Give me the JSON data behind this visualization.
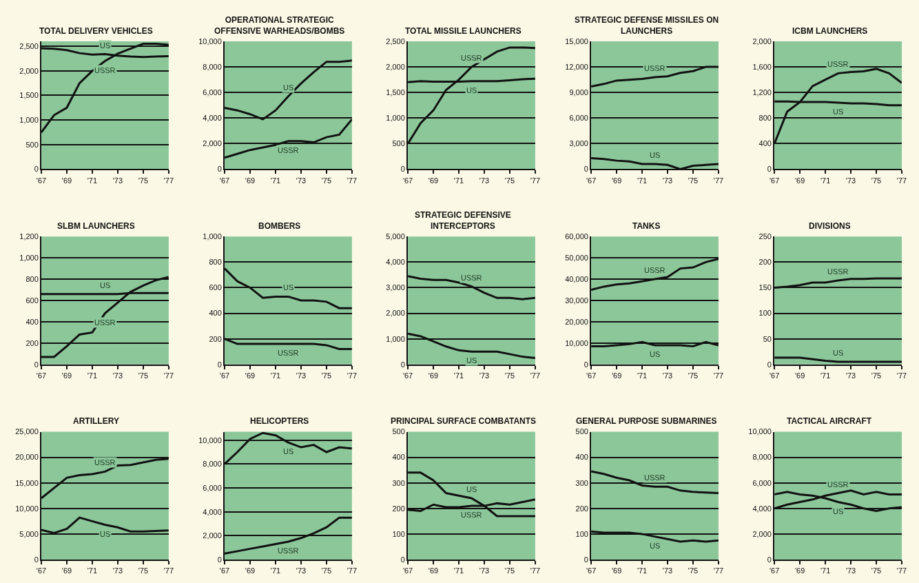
{
  "chart_data": [
    {
      "type": "line",
      "title": "TOTAL DELIVERY VEHICLES",
      "x": [
        1967,
        1968,
        1969,
        1970,
        1971,
        1972,
        1973,
        1974,
        1975,
        1976,
        1977
      ],
      "xlim": [
        1967,
        1977
      ],
      "xticks": [
        {
          "value": 1967,
          "label": "'67"
        },
        {
          "value": 1969,
          "label": "'69"
        },
        {
          "value": 1971,
          "label": "'71"
        },
        {
          "value": 1973,
          "label": "'73"
        },
        {
          "value": 1975,
          "label": "'75"
        },
        {
          "value": 1977,
          "label": "'77"
        }
      ],
      "ylim": [
        0,
        2600
      ],
      "yticks": [
        0,
        500,
        {
          "value": 1000,
          "label": "1,000"
        },
        {
          "value": 1500,
          "label": "1,500"
        },
        {
          "value": 2000,
          "label": "2,000"
        },
        {
          "value": 2500,
          "label": "2,500"
        }
      ],
      "grid": "y",
      "series": [
        {
          "name": "US",
          "color": "#111111",
          "values": [
            2460,
            2450,
            2420,
            2360,
            2330,
            2340,
            2310,
            2290,
            2280,
            2290,
            2300
          ]
        },
        {
          "name": "USSR",
          "color": "#111111",
          "values": [
            750,
            1100,
            1250,
            1750,
            2000,
            2200,
            2350,
            2450,
            2550,
            2550,
            2530
          ]
        }
      ]
    },
    {
      "type": "line",
      "title": "OPERATIONAL STRATEGIC OFFENSIVE WARHEADS/BOMBS",
      "x": [
        1967,
        1968,
        1969,
        1970,
        1971,
        1972,
        1973,
        1974,
        1975,
        1976,
        1977
      ],
      "xlim": [
        1967,
        1977
      ],
      "xticks": [
        {
          "value": 1967,
          "label": "'67"
        },
        {
          "value": 1969,
          "label": "'69"
        },
        {
          "value": 1971,
          "label": "'71"
        },
        {
          "value": 1973,
          "label": "'73"
        },
        {
          "value": 1975,
          "label": "'75"
        },
        {
          "value": 1977,
          "label": "'77"
        }
      ],
      "ylim": [
        0,
        10000
      ],
      "yticks": [
        0,
        {
          "value": 2000,
          "label": "2,000"
        },
        {
          "value": 4000,
          "label": "4,000"
        },
        {
          "value": 6000,
          "label": "6,000"
        },
        {
          "value": 8000,
          "label": "8,000"
        },
        {
          "value": 10000,
          "label": "10,000"
        }
      ],
      "grid": "y",
      "series": [
        {
          "name": "US",
          "color": "#111111",
          "values": [
            4800,
            4600,
            4300,
            3900,
            4600,
            5700,
            6700,
            7600,
            8400,
            8400,
            8500
          ]
        },
        {
          "name": "USSR",
          "color": "#111111",
          "values": [
            900,
            1200,
            1500,
            1700,
            1900,
            2200,
            2200,
            2100,
            2500,
            2700,
            3900
          ]
        }
      ]
    },
    {
      "type": "line",
      "title": "TOTAL MISSILE LAUNCHERS",
      "x": [
        1967,
        1968,
        1969,
        1970,
        1971,
        1972,
        1973,
        1974,
        1975,
        1976,
        1977
      ],
      "xlim": [
        1967,
        1977
      ],
      "xticks": [
        {
          "value": 1967,
          "label": "'67"
        },
        {
          "value": 1969,
          "label": "'69"
        },
        {
          "value": 1971,
          "label": "'71"
        },
        {
          "value": 1973,
          "label": "'73"
        },
        {
          "value": 1975,
          "label": "'75"
        },
        {
          "value": 1977,
          "label": "'77"
        }
      ],
      "ylim": [
        0,
        2500
      ],
      "yticks": [
        0,
        500,
        {
          "value": 1000,
          "label": "1,000"
        },
        {
          "value": 1500,
          "label": "1,500"
        },
        {
          "value": 2000,
          "label": "2,000"
        },
        {
          "value": 2500,
          "label": "2,500"
        }
      ],
      "grid": "y",
      "series": [
        {
          "name": "US",
          "color": "#111111",
          "values": [
            1700,
            1720,
            1710,
            1710,
            1710,
            1720,
            1720,
            1720,
            1740,
            1760,
            1770
          ]
        },
        {
          "name": "USSR",
          "color": "#111111",
          "values": [
            500,
            900,
            1150,
            1550,
            1750,
            2000,
            2150,
            2300,
            2380,
            2380,
            2370
          ]
        }
      ]
    },
    {
      "type": "line",
      "title": "STRATEGIC DEFENSE MISSILES ON LAUNCHERS",
      "x": [
        1967,
        1968,
        1969,
        1970,
        1971,
        1972,
        1973,
        1974,
        1975,
        1976,
        1977
      ],
      "xlim": [
        1967,
        1977
      ],
      "xticks": [
        {
          "value": 1967,
          "label": "'67"
        },
        {
          "value": 1969,
          "label": "'69"
        },
        {
          "value": 1971,
          "label": "'71"
        },
        {
          "value": 1973,
          "label": "'73"
        },
        {
          "value": 1975,
          "label": "'75"
        },
        {
          "value": 1977,
          "label": "'77"
        }
      ],
      "ylim": [
        0,
        15000
      ],
      "yticks": [
        0,
        {
          "value": 3000,
          "label": "3,000"
        },
        {
          "value": 6000,
          "label": "6,000"
        },
        {
          "value": 9000,
          "label": "9,000"
        },
        {
          "value": 12000,
          "label": "12,000"
        },
        {
          "value": 15000,
          "label": "15,000"
        }
      ],
      "grid": "y",
      "series": [
        {
          "name": "USSR",
          "color": "#111111",
          "values": [
            9700,
            10000,
            10400,
            10500,
            10600,
            10800,
            10900,
            11300,
            11500,
            12000,
            12000
          ]
        },
        {
          "name": "US",
          "color": "#111111",
          "values": [
            1300,
            1200,
            1000,
            900,
            600,
            600,
            500,
            0,
            400,
            500,
            600
          ]
        }
      ]
    },
    {
      "type": "line",
      "title": "ICBM LAUNCHERS",
      "x": [
        1967,
        1968,
        1969,
        1970,
        1971,
        1972,
        1973,
        1974,
        1975,
        1976,
        1977
      ],
      "xlim": [
        1967,
        1977
      ],
      "xticks": [
        {
          "value": 1967,
          "label": "'67"
        },
        {
          "value": 1969,
          "label": "'69"
        },
        {
          "value": 1971,
          "label": "'71"
        },
        {
          "value": 1973,
          "label": "'73"
        },
        {
          "value": 1975,
          "label": "'75"
        },
        {
          "value": 1977,
          "label": "'77"
        }
      ],
      "ylim": [
        0,
        2000
      ],
      "yticks": [
        0,
        400,
        800,
        {
          "value": 1200,
          "label": "1,200"
        },
        {
          "value": 1600,
          "label": "1,600"
        },
        {
          "value": 2000,
          "label": "2,000"
        }
      ],
      "grid": "y",
      "series": [
        {
          "name": "USSR",
          "color": "#111111",
          "values": [
            400,
            900,
            1050,
            1300,
            1400,
            1500,
            1520,
            1530,
            1570,
            1500,
            1350
          ]
        },
        {
          "name": "US",
          "color": "#111111",
          "values": [
            1060,
            1060,
            1050,
            1050,
            1050,
            1040,
            1030,
            1030,
            1020,
            1000,
            1000
          ]
        }
      ]
    },
    {
      "type": "line",
      "title": "SLBM LAUNCHERS",
      "x": [
        1967,
        1968,
        1969,
        1970,
        1971,
        1972,
        1973,
        1974,
        1975,
        1976,
        1977
      ],
      "xlim": [
        1967,
        1977
      ],
      "xticks": [
        {
          "value": 1967,
          "label": "'67"
        },
        {
          "value": 1969,
          "label": "'69"
        },
        {
          "value": 1971,
          "label": "'71"
        },
        {
          "value": 1973,
          "label": "'73"
        },
        {
          "value": 1975,
          "label": "'75"
        },
        {
          "value": 1977,
          "label": "'77"
        }
      ],
      "ylim": [
        0,
        1200
      ],
      "yticks": [
        0,
        200,
        400,
        600,
        800,
        {
          "value": 1000,
          "label": "1,000"
        },
        {
          "value": 1200,
          "label": "1,200"
        }
      ],
      "grid": "y",
      "series": [
        {
          "name": "US",
          "color": "#111111",
          "values": [
            660,
            660,
            660,
            660,
            660,
            660,
            660,
            670,
            670,
            670,
            670
          ]
        },
        {
          "name": "USSR",
          "color": "#111111",
          "values": [
            70,
            70,
            170,
            280,
            300,
            480,
            580,
            680,
            740,
            790,
            820
          ]
        }
      ]
    },
    {
      "type": "line",
      "title": "BOMBERS",
      "x": [
        1967,
        1968,
        1969,
        1970,
        1971,
        1972,
        1973,
        1974,
        1975,
        1976,
        1977
      ],
      "xlim": [
        1967,
        1977
      ],
      "xticks": [
        {
          "value": 1967,
          "label": "'67"
        },
        {
          "value": 1969,
          "label": "'69"
        },
        {
          "value": 1971,
          "label": "'71"
        },
        {
          "value": 1973,
          "label": "'73"
        },
        {
          "value": 1975,
          "label": "'75"
        },
        {
          "value": 1977,
          "label": "'77"
        }
      ],
      "ylim": [
        0,
        1000
      ],
      "yticks": [
        0,
        200,
        400,
        600,
        800,
        {
          "value": 1000,
          "label": "1,000"
        }
      ],
      "grid": "y",
      "series": [
        {
          "name": "US",
          "color": "#111111",
          "values": [
            750,
            650,
            600,
            520,
            530,
            530,
            500,
            500,
            490,
            440,
            440
          ]
        },
        {
          "name": "USSR",
          "color": "#111111",
          "values": [
            200,
            160,
            160,
            160,
            160,
            160,
            160,
            160,
            150,
            120,
            120
          ]
        }
      ]
    },
    {
      "type": "line",
      "title": "STRATEGIC DEFENSIVE INTERCEPTORS",
      "x": [
        1967,
        1968,
        1969,
        1970,
        1971,
        1972,
        1973,
        1974,
        1975,
        1976,
        1977
      ],
      "xlim": [
        1967,
        1977
      ],
      "xticks": [
        {
          "value": 1967,
          "label": "'67"
        },
        {
          "value": 1969,
          "label": "'69"
        },
        {
          "value": 1971,
          "label": "'71"
        },
        {
          "value": 1973,
          "label": "'73"
        },
        {
          "value": 1975,
          "label": "'75"
        },
        {
          "value": 1977,
          "label": "'77"
        }
      ],
      "ylim": [
        0,
        5000
      ],
      "yticks": [
        0,
        {
          "value": 1000,
          "label": "1,000"
        },
        {
          "value": 2000,
          "label": "2,000"
        },
        {
          "value": 3000,
          "label": "3,000"
        },
        {
          "value": 4000,
          "label": "4,000"
        },
        {
          "value": 5000,
          "label": "5,000"
        }
      ],
      "grid": "y",
      "series": [
        {
          "name": "USSR",
          "color": "#111111",
          "values": [
            3450,
            3350,
            3300,
            3300,
            3200,
            3050,
            2800,
            2600,
            2600,
            2550,
            2600
          ]
        },
        {
          "name": "US",
          "color": "#111111",
          "values": [
            1200,
            1100,
            900,
            700,
            550,
            500,
            500,
            500,
            400,
            300,
            250
          ]
        }
      ]
    },
    {
      "type": "line",
      "title": "TANKS",
      "x": [
        1967,
        1968,
        1969,
        1970,
        1971,
        1972,
        1973,
        1974,
        1975,
        1976,
        1977
      ],
      "xlim": [
        1967,
        1977
      ],
      "xticks": [
        {
          "value": 1967,
          "label": "'67"
        },
        {
          "value": 1969,
          "label": "'69"
        },
        {
          "value": 1971,
          "label": "'71"
        },
        {
          "value": 1973,
          "label": "'73"
        },
        {
          "value": 1975,
          "label": "'75"
        },
        {
          "value": 1977,
          "label": "'77"
        }
      ],
      "ylim": [
        0,
        60000
      ],
      "yticks": [
        0,
        {
          "value": 10000,
          "label": "10,000"
        },
        {
          "value": 20000,
          "label": "20,000"
        },
        {
          "value": 30000,
          "label": "30,000"
        },
        {
          "value": 40000,
          "label": "40,000"
        },
        {
          "value": 50000,
          "label": "50,000"
        },
        {
          "value": 60000,
          "label": "60,000"
        }
      ],
      "grid": "y",
      "series": [
        {
          "name": "USSR",
          "color": "#111111",
          "values": [
            35000,
            36500,
            37500,
            38000,
            39000,
            40000,
            41000,
            45000,
            45500,
            48000,
            49500
          ]
        },
        {
          "name": "US",
          "color": "#111111",
          "values": [
            8500,
            8500,
            9000,
            9500,
            10500,
            9000,
            9000,
            9000,
            8500,
            10500,
            9000
          ]
        }
      ]
    },
    {
      "type": "line",
      "title": "DIVISIONS",
      "x": [
        1967,
        1968,
        1969,
        1970,
        1971,
        1972,
        1973,
        1974,
        1975,
        1976,
        1977
      ],
      "xlim": [
        1967,
        1977
      ],
      "xticks": [
        {
          "value": 1967,
          "label": "'67"
        },
        {
          "value": 1969,
          "label": "'69"
        },
        {
          "value": 1971,
          "label": "'71"
        },
        {
          "value": 1973,
          "label": "'73"
        },
        {
          "value": 1975,
          "label": "'75"
        },
        {
          "value": 1977,
          "label": "'77"
        }
      ],
      "ylim": [
        0,
        250
      ],
      "yticks": [
        0,
        50,
        100,
        150,
        200,
        250
      ],
      "grid": "y",
      "series": [
        {
          "name": "USSR",
          "color": "#111111",
          "values": [
            150,
            152,
            155,
            160,
            160,
            164,
            167,
            167,
            168,
            168,
            168
          ]
        },
        {
          "name": "US",
          "color": "#111111",
          "values": [
            13,
            13,
            13,
            10,
            7,
            5,
            5,
            5,
            5,
            5,
            5
          ]
        }
      ]
    },
    {
      "type": "line",
      "title": "ARTILLERY",
      "x": [
        1967,
        1968,
        1969,
        1970,
        1971,
        1972,
        1973,
        1974,
        1975,
        1976,
        1977
      ],
      "xlim": [
        1967,
        1977
      ],
      "xticks": [
        {
          "value": 1967,
          "label": "'67"
        },
        {
          "value": 1969,
          "label": "'69"
        },
        {
          "value": 1971,
          "label": "'71"
        },
        {
          "value": 1973,
          "label": "'73"
        },
        {
          "value": 1975,
          "label": "'75"
        },
        {
          "value": 1977,
          "label": "'77"
        }
      ],
      "ylim": [
        0,
        25000
      ],
      "yticks": [
        0,
        {
          "value": 5000,
          "label": "5,000"
        },
        {
          "value": 10000,
          "label": "10,000"
        },
        {
          "value": 15000,
          "label": "15,000"
        },
        {
          "value": 20000,
          "label": "20,000"
        },
        {
          "value": 25000,
          "label": "25,000"
        }
      ],
      "grid": "y",
      "series": [
        {
          "name": "USSR",
          "color": "#111111",
          "values": [
            12000,
            14000,
            16000,
            16500,
            16700,
            17200,
            18400,
            18500,
            19000,
            19500,
            19700
          ]
        },
        {
          "name": "US",
          "color": "#111111",
          "values": [
            5800,
            5200,
            6000,
            8200,
            7500,
            6800,
            6300,
            5500,
            5500,
            5600,
            5700
          ]
        }
      ]
    },
    {
      "type": "line",
      "title": "HELICOPTERS",
      "x": [
        1967,
        1968,
        1969,
        1970,
        1971,
        1972,
        1973,
        1974,
        1975,
        1976,
        1977
      ],
      "xlim": [
        1967,
        1977
      ],
      "xticks": [
        {
          "value": 1967,
          "label": "'67"
        },
        {
          "value": 1969,
          "label": "'69"
        },
        {
          "value": 1971,
          "label": "'71"
        },
        {
          "value": 1973,
          "label": "'73"
        },
        {
          "value": 1975,
          "label": "'75"
        },
        {
          "value": 1977,
          "label": "'77"
        }
      ],
      "ylim": [
        0,
        10700
      ],
      "yticks": [
        0,
        {
          "value": 2000,
          "label": "2,000"
        },
        {
          "value": 4000,
          "label": "4,000"
        },
        {
          "value": 6000,
          "label": "6,000"
        },
        {
          "value": 8000,
          "label": "8,000"
        },
        {
          "value": 10000,
          "label": "10,000"
        }
      ],
      "grid": "y",
      "series": [
        {
          "name": "US",
          "color": "#111111",
          "values": [
            8000,
            9000,
            10100,
            10600,
            10400,
            9800,
            9400,
            9600,
            9000,
            9400,
            9300
          ]
        },
        {
          "name": "USSR",
          "color": "#111111",
          "values": [
            500,
            700,
            900,
            1100,
            1300,
            1500,
            1800,
            2200,
            2700,
            3500,
            3500
          ]
        }
      ]
    },
    {
      "type": "line",
      "title": "PRINCIPAL SURFACE COMBATANTS",
      "x": [
        1967,
        1968,
        1969,
        1970,
        1971,
        1972,
        1973,
        1974,
        1975,
        1976,
        1977
      ],
      "xlim": [
        1967,
        1977
      ],
      "xticks": [
        {
          "value": 1967,
          "label": "'67"
        },
        {
          "value": 1969,
          "label": "'69"
        },
        {
          "value": 1971,
          "label": "'71"
        },
        {
          "value": 1973,
          "label": "'73"
        },
        {
          "value": 1975,
          "label": "'75"
        },
        {
          "value": 1977,
          "label": "'77"
        }
      ],
      "ylim": [
        0,
        500
      ],
      "yticks": [
        0,
        100,
        200,
        300,
        400,
        500
      ],
      "grid": "y",
      "series": [
        {
          "name": "US",
          "color": "#111111",
          "values": [
            340,
            340,
            310,
            260,
            250,
            240,
            210,
            170,
            170,
            170,
            170
          ]
        },
        {
          "name": "USSR",
          "color": "#111111",
          "values": [
            195,
            190,
            215,
            205,
            205,
            210,
            210,
            220,
            215,
            225,
            235
          ]
        }
      ]
    },
    {
      "type": "line",
      "title": "GENERAL PURPOSE SUBMARINES",
      "x": [
        1967,
        1968,
        1969,
        1970,
        1971,
        1972,
        1973,
        1974,
        1975,
        1976,
        1977
      ],
      "xlim": [
        1967,
        1977
      ],
      "xticks": [
        {
          "value": 1967,
          "label": "'67"
        },
        {
          "value": 1969,
          "label": "'69"
        },
        {
          "value": 1971,
          "label": "'71"
        },
        {
          "value": 1973,
          "label": "'73"
        },
        {
          "value": 1975,
          "label": "'75"
        },
        {
          "value": 1977,
          "label": "'77"
        }
      ],
      "ylim": [
        0,
        500
      ],
      "yticks": [
        0,
        100,
        200,
        300,
        400,
        500
      ],
      "grid": "y",
      "series": [
        {
          "name": "USSR",
          "color": "#111111",
          "values": [
            345,
            335,
            320,
            310,
            290,
            285,
            285,
            270,
            265,
            262,
            260
          ]
        },
        {
          "name": "US",
          "color": "#111111",
          "values": [
            110,
            105,
            105,
            105,
            100,
            90,
            80,
            70,
            75,
            70,
            75
          ]
        }
      ]
    },
    {
      "type": "line",
      "title": "TACTICAL AIRCRAFT",
      "x": [
        1967,
        1968,
        1969,
        1970,
        1971,
        1972,
        1973,
        1974,
        1975,
        1976,
        1977
      ],
      "xlim": [
        1967,
        1977
      ],
      "xticks": [
        {
          "value": 1967,
          "label": "'67"
        },
        {
          "value": 1969,
          "label": "'69"
        },
        {
          "value": 1971,
          "label": "'71"
        },
        {
          "value": 1973,
          "label": "'73"
        },
        {
          "value": 1975,
          "label": "'75"
        },
        {
          "value": 1977,
          "label": "'77"
        }
      ],
      "ylim": [
        0,
        10000
      ],
      "yticks": [
        0,
        {
          "value": 2000,
          "label": "2,000"
        },
        {
          "value": 4000,
          "label": "4,000"
        },
        {
          "value": 6000,
          "label": "6,000"
        },
        {
          "value": 8000,
          "label": "8,000"
        },
        {
          "value": 10000,
          "label": "10,000"
        }
      ],
      "grid": "y",
      "series": [
        {
          "name": "US",
          "color": "#111111",
          "values": [
            5100,
            5300,
            5100,
            5000,
            4800,
            4500,
            4300,
            4000,
            3800,
            4000,
            4100
          ]
        },
        {
          "name": "USSR",
          "color": "#111111",
          "values": [
            4000,
            4300,
            4500,
            4700,
            5000,
            5200,
            5400,
            5100,
            5300,
            5100,
            5100
          ]
        }
      ]
    }
  ]
}
